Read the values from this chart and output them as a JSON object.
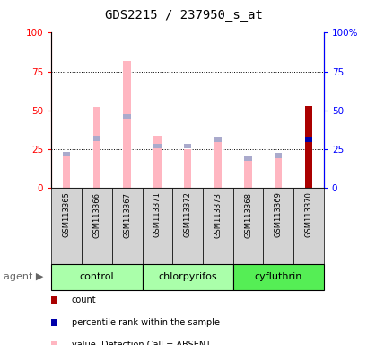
{
  "title": "GDS2215 / 237950_s_at",
  "samples": [
    "GSM113365",
    "GSM113366",
    "GSM113367",
    "GSM113371",
    "GSM113372",
    "GSM113373",
    "GSM113368",
    "GSM113369",
    "GSM113370"
  ],
  "value_absent": [
    21,
    52,
    82,
    34,
    25,
    33,
    19,
    19,
    53
  ],
  "rank_absent": [
    22,
    32,
    46,
    27,
    27,
    31,
    19,
    21,
    31
  ],
  "count_value": [
    0,
    0,
    0,
    0,
    0,
    0,
    0,
    0,
    53
  ],
  "percentile_rank": [
    0,
    0,
    0,
    0,
    0,
    0,
    0,
    0,
    31
  ],
  "ylim": [
    0,
    100
  ],
  "yticks": [
    0,
    25,
    50,
    75,
    100
  ],
  "bar_width": 0.25,
  "color_value_absent": "#FFB6C1",
  "color_rank_absent": "#AAAACC",
  "color_count": "#AA0000",
  "color_percentile": "#0000AA",
  "groups": [
    {
      "name": "control",
      "start": 0,
      "end": 3,
      "color": "#AAFFAA"
    },
    {
      "name": "chlorpyrifos",
      "start": 3,
      "end": 6,
      "color": "#AAFFAA"
    },
    {
      "name": "cyfluthrin",
      "start": 6,
      "end": 9,
      "color": "#55EE55"
    }
  ]
}
